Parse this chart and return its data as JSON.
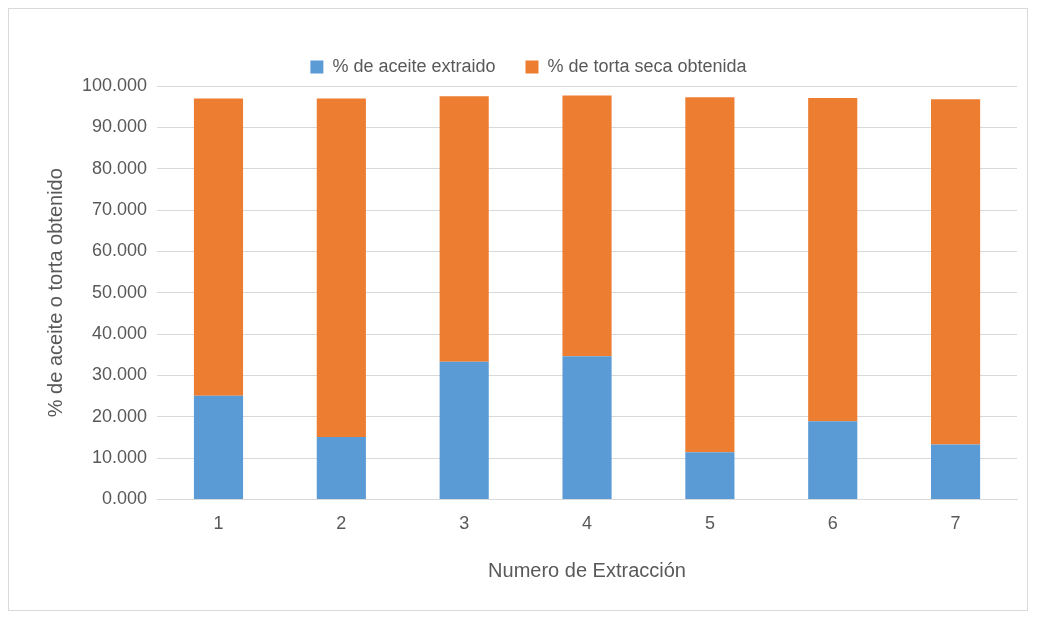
{
  "chart_data": {
    "type": "bar",
    "stacked": true,
    "xlabel": "Numero de Extracción",
    "ylabel": "% de aceite o torta obtenido",
    "categories": [
      "1",
      "2",
      "3",
      "4",
      "5",
      "6",
      "7"
    ],
    "series": [
      {
        "name": "% de aceite extraido",
        "color": "#5b9bd5",
        "values": [
          25.1,
          15.1,
          33.3,
          34.6,
          11.4,
          18.9,
          13.3
        ]
      },
      {
        "name": "% de torta seca obtenida",
        "color": "#ed7d31",
        "values": [
          71.9,
          81.9,
          64.2,
          63.1,
          85.9,
          78.2,
          83.5
        ]
      }
    ],
    "ylim": [
      0,
      100
    ],
    "yticks": [
      {
        "value": 0,
        "label": "0.000"
      },
      {
        "value": 10,
        "label": "10.000"
      },
      {
        "value": 20,
        "label": "20.000"
      },
      {
        "value": 30,
        "label": "30.000"
      },
      {
        "value": 40,
        "label": "40.000"
      },
      {
        "value": 50,
        "label": "50.000"
      },
      {
        "value": 60,
        "label": "60.000"
      },
      {
        "value": 70,
        "label": "70.000"
      },
      {
        "value": 80,
        "label": "80.000"
      },
      {
        "value": 90,
        "label": "90.000"
      },
      {
        "value": 100,
        "label": "100.000"
      }
    ],
    "grid": "y",
    "legend": "top"
  }
}
